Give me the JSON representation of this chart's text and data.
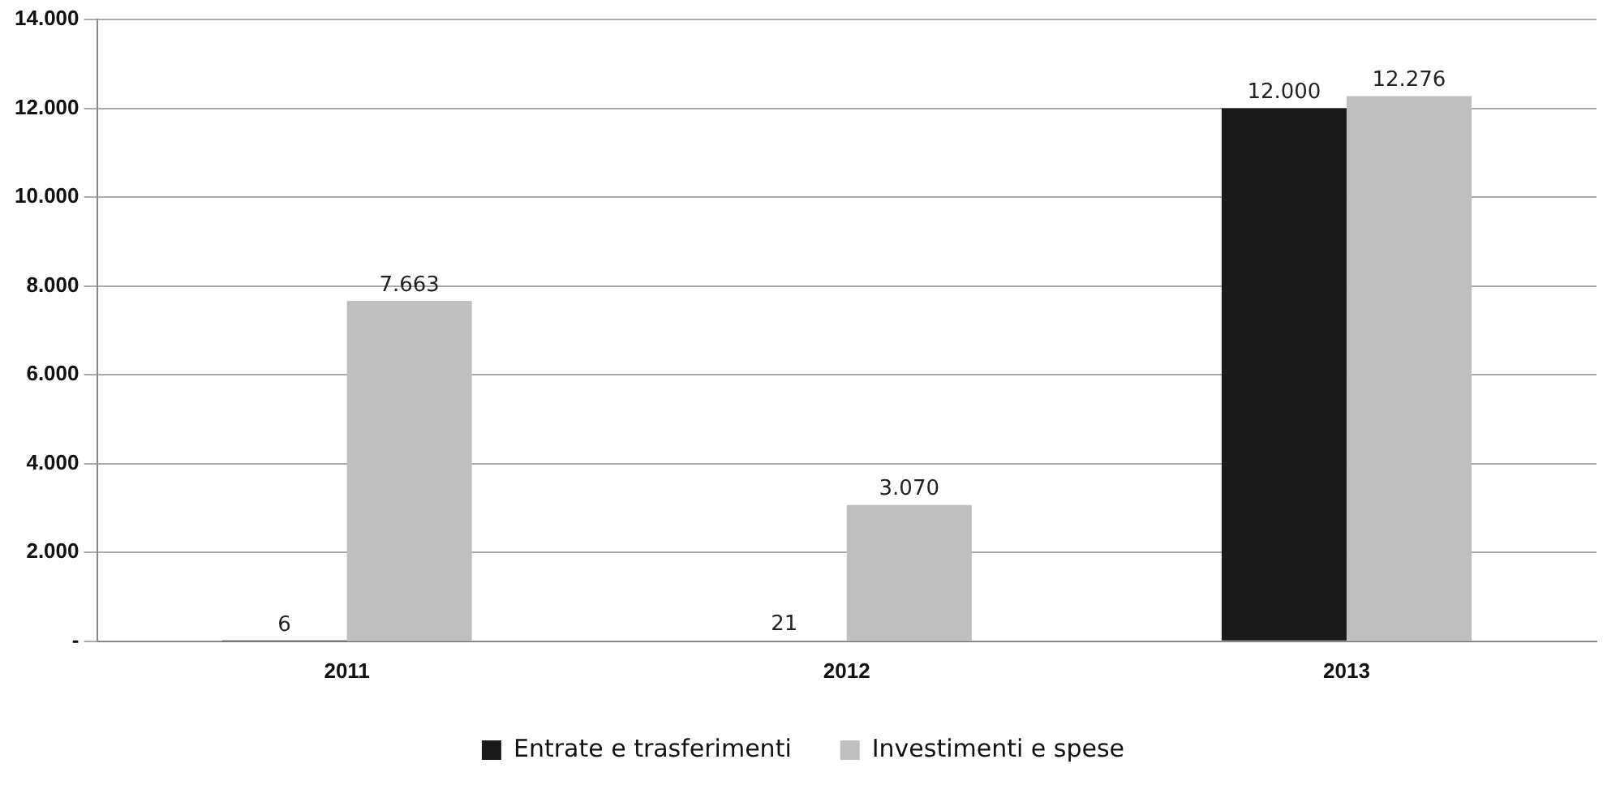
{
  "chart_data": {
    "type": "bar",
    "categories": [
      "2011",
      "2012",
      "2013"
    ],
    "series": [
      {
        "name": "Entrate e trasferimenti",
        "color": "#1a1a1a",
        "values": [
          6,
          21,
          12000
        ],
        "value_labels": [
          "6",
          "21",
          "12.000"
        ]
      },
      {
        "name": "Investimenti e spese",
        "color": "#bfbfbf",
        "values": [
          7663,
          3070,
          12276
        ],
        "value_labels": [
          "7.663",
          "3.070",
          "12.276"
        ]
      }
    ],
    "ylim": [
      0,
      14000
    ],
    "yticks": [
      {
        "value": 0,
        "label": "-"
      },
      {
        "value": 2000,
        "label": "2.000"
      },
      {
        "value": 4000,
        "label": "4.000"
      },
      {
        "value": 6000,
        "label": "6.000"
      },
      {
        "value": 8000,
        "label": "8.000"
      },
      {
        "value": 10000,
        "label": "10.000"
      },
      {
        "value": 12000,
        "label": "12.000"
      },
      {
        "value": 14000,
        "label": "14.000"
      }
    ],
    "grid": "y",
    "legend": "bottom"
  }
}
